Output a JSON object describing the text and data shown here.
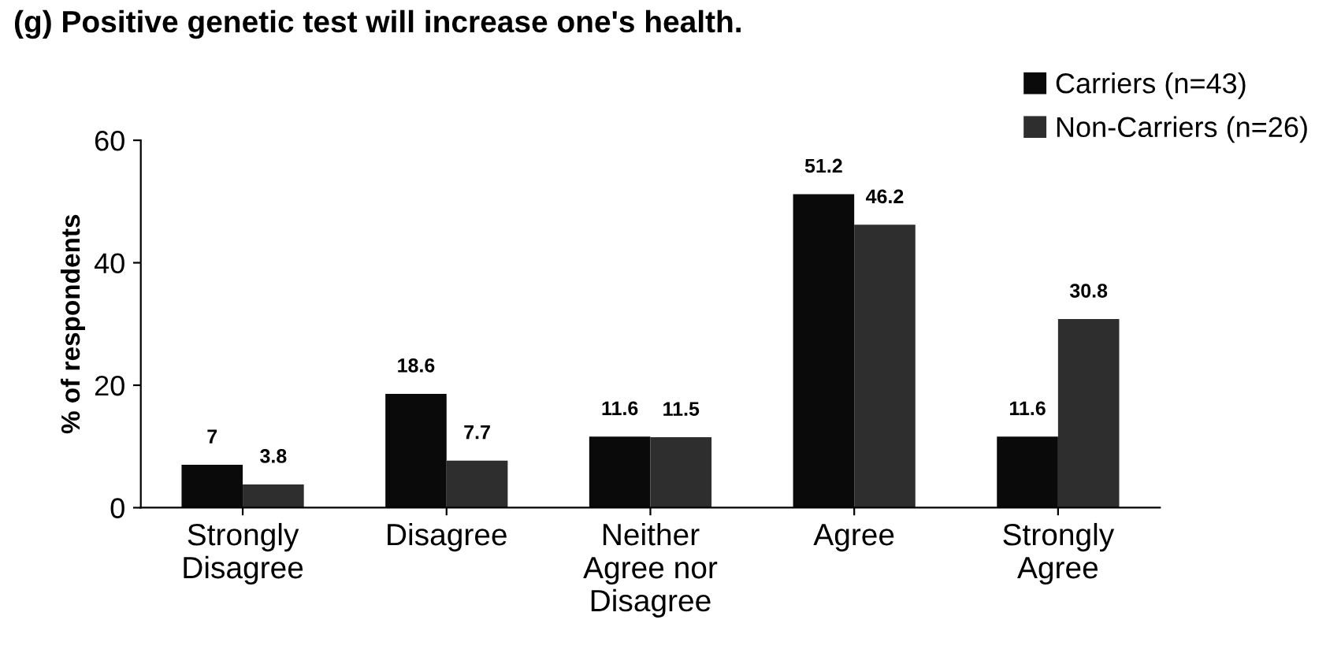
{
  "chart_data": {
    "type": "bar",
    "title": "(g) Positive genetic test will increase one's health.",
    "ylabel": "% of respondents",
    "categories": [
      "Strongly\nDisagree",
      "Disagree",
      "Neither\nAgree nor\nDisagree",
      "Agree",
      "Strongly\nAgree"
    ],
    "series": [
      {
        "name": "Carriers (n=43)",
        "color": "#0a0a0a",
        "values": [
          7,
          18.6,
          11.6,
          51.2,
          11.6
        ]
      },
      {
        "name": "Non-Carriers (n=26)",
        "color": "#2e2e2e",
        "values": [
          3.8,
          7.7,
          11.5,
          46.2,
          30.8
        ]
      }
    ],
    "ylim": [
      0,
      60
    ],
    "yticks": [
      0,
      20,
      40,
      60
    ],
    "grid": false,
    "legend": "top right",
    "data_labels": true
  }
}
